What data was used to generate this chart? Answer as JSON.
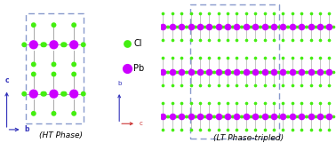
{
  "bg_color": "#ffffff",
  "cl_color": "#44ee11",
  "pb_color": "#cc00ff",
  "bond_color": "#999999",
  "dashed_box_color": "#8899cc",
  "axis_color_b": "#3333bb",
  "axis_color_c": "#cc3333",
  "title_ht": "(HT Phase)",
  "title_lt": "(LT Phase-tripled)",
  "legend_cl": "Cl",
  "legend_pb": "Pb",
  "cl_size_ht": 18,
  "pb_size_ht": 55,
  "cl_size_lt": 7,
  "pb_size_lt": 30,
  "cl_size_legend": 40,
  "pb_size_legend": 65
}
